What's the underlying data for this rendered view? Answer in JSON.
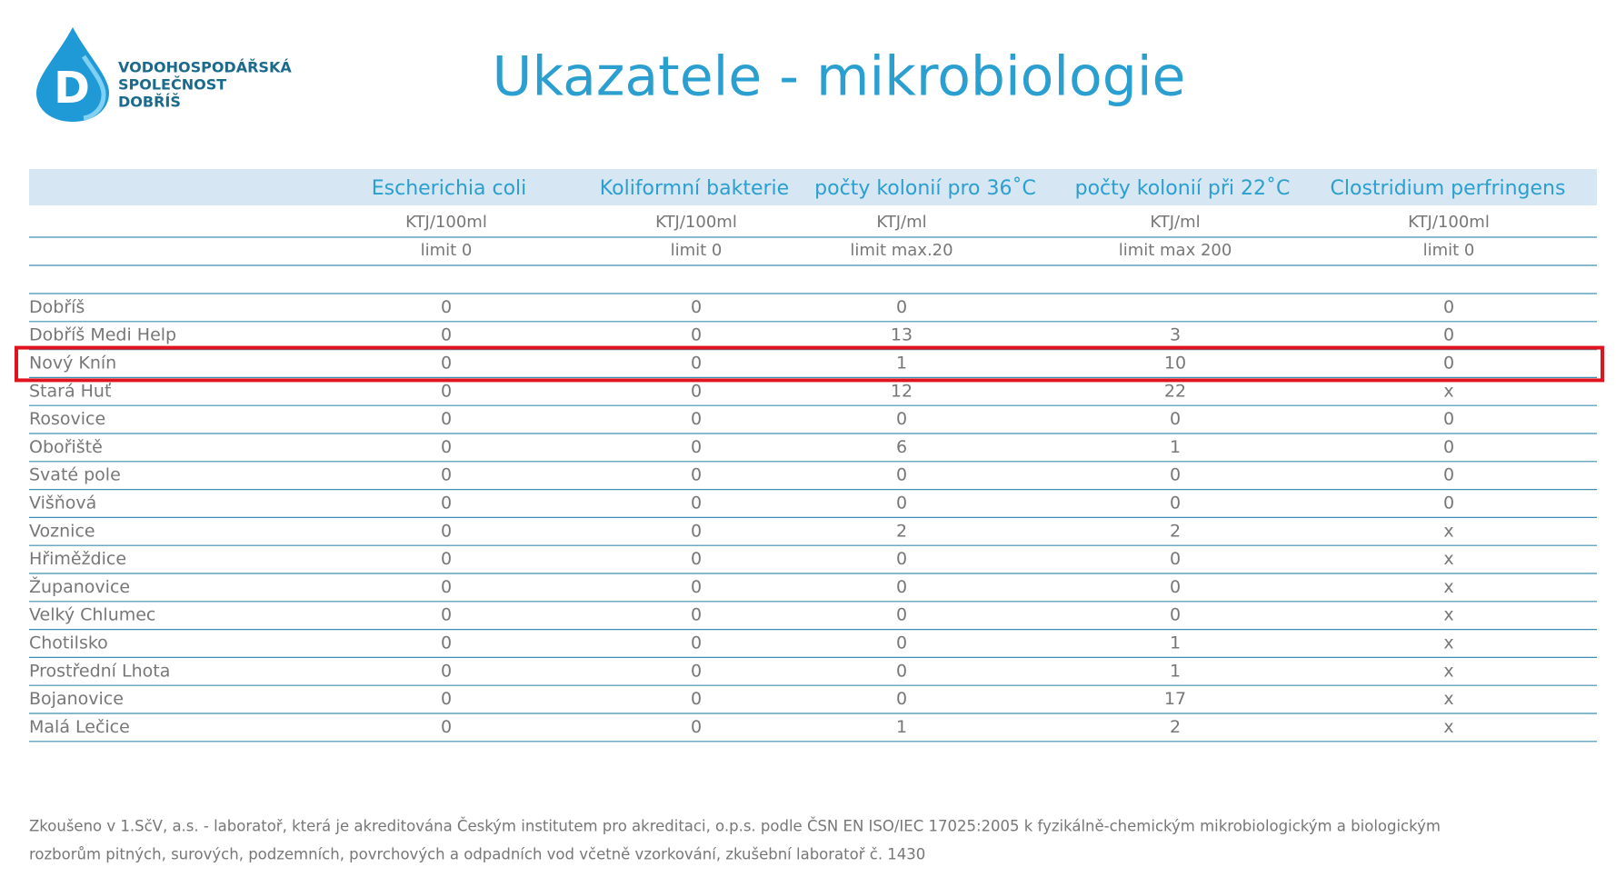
{
  "logo": {
    "letter": "D",
    "lines": [
      "VODOHOSPODÁŘSKÁ",
      "SPOLEČNOST",
      "DOBŘÍŠ"
    ]
  },
  "header": {
    "title": "Ukazatele - mikrobiologie"
  },
  "table": {
    "columns": [
      "Escherichia coli",
      "Koliformní bakterie",
      "počty kolonií pro 36˚C",
      "počty kolonií při  22˚C",
      "Clostridium perfringens"
    ],
    "units": [
      "KTJ/100ml",
      "KTJ/100ml",
      "KTJ/ml",
      "KTJ/ml",
      "KTJ/100ml"
    ],
    "limits": [
      "limit 0",
      "limit 0",
      "limit max.20",
      "limit max 200",
      "limit 0"
    ],
    "highlight_row": 2,
    "rows": [
      [
        "Dobříš",
        0,
        0,
        0,
        null,
        0
      ],
      [
        "Dobříš Medi Help",
        0,
        0,
        13,
        3,
        0
      ],
      [
        "Nový Knín",
        0,
        0,
        1,
        10,
        0
      ],
      [
        "Stará Huť",
        0,
        0,
        12,
        22,
        "x"
      ],
      [
        "Rosovice",
        0,
        0,
        0,
        0,
        0
      ],
      [
        "Obořiště",
        0,
        0,
        6,
        1,
        0
      ],
      [
        "Svaté pole",
        0,
        0,
        0,
        0,
        0
      ],
      [
        "Višňová",
        0,
        0,
        0,
        0,
        0
      ],
      [
        "Voznice",
        0,
        0,
        2,
        2,
        "x"
      ],
      [
        "Hřiměždice",
        0,
        0,
        0,
        0,
        "x"
      ],
      [
        "Županovice",
        0,
        0,
        0,
        0,
        "x"
      ],
      [
        "Velký Chlumec",
        0,
        0,
        0,
        0,
        "x"
      ],
      [
        "Chotilsko",
        0,
        0,
        0,
        1,
        "x"
      ],
      [
        "Prostřední Lhota",
        0,
        0,
        0,
        1,
        "x"
      ],
      [
        "Bojanovice",
        0,
        0,
        0,
        17,
        "x"
      ],
      [
        "Malá Lečice",
        0,
        0,
        1,
        2,
        "x"
      ]
    ]
  },
  "footnote": {
    "lines": [
      "Zkoušeno v 1.SčV, a.s. - laboratoř, která je akreditována Českým institutem pro akreditaci, o.p.s. podle ČSN EN ISO/IEC 17025:2005 k fyzikálně-chemickým mikrobiologickým a biologickým",
      "rozborům pitných, surových, podzemních, povrchových a odpadních vod včetně vzorkování, zkušební laboratoř č. 1430"
    ]
  }
}
